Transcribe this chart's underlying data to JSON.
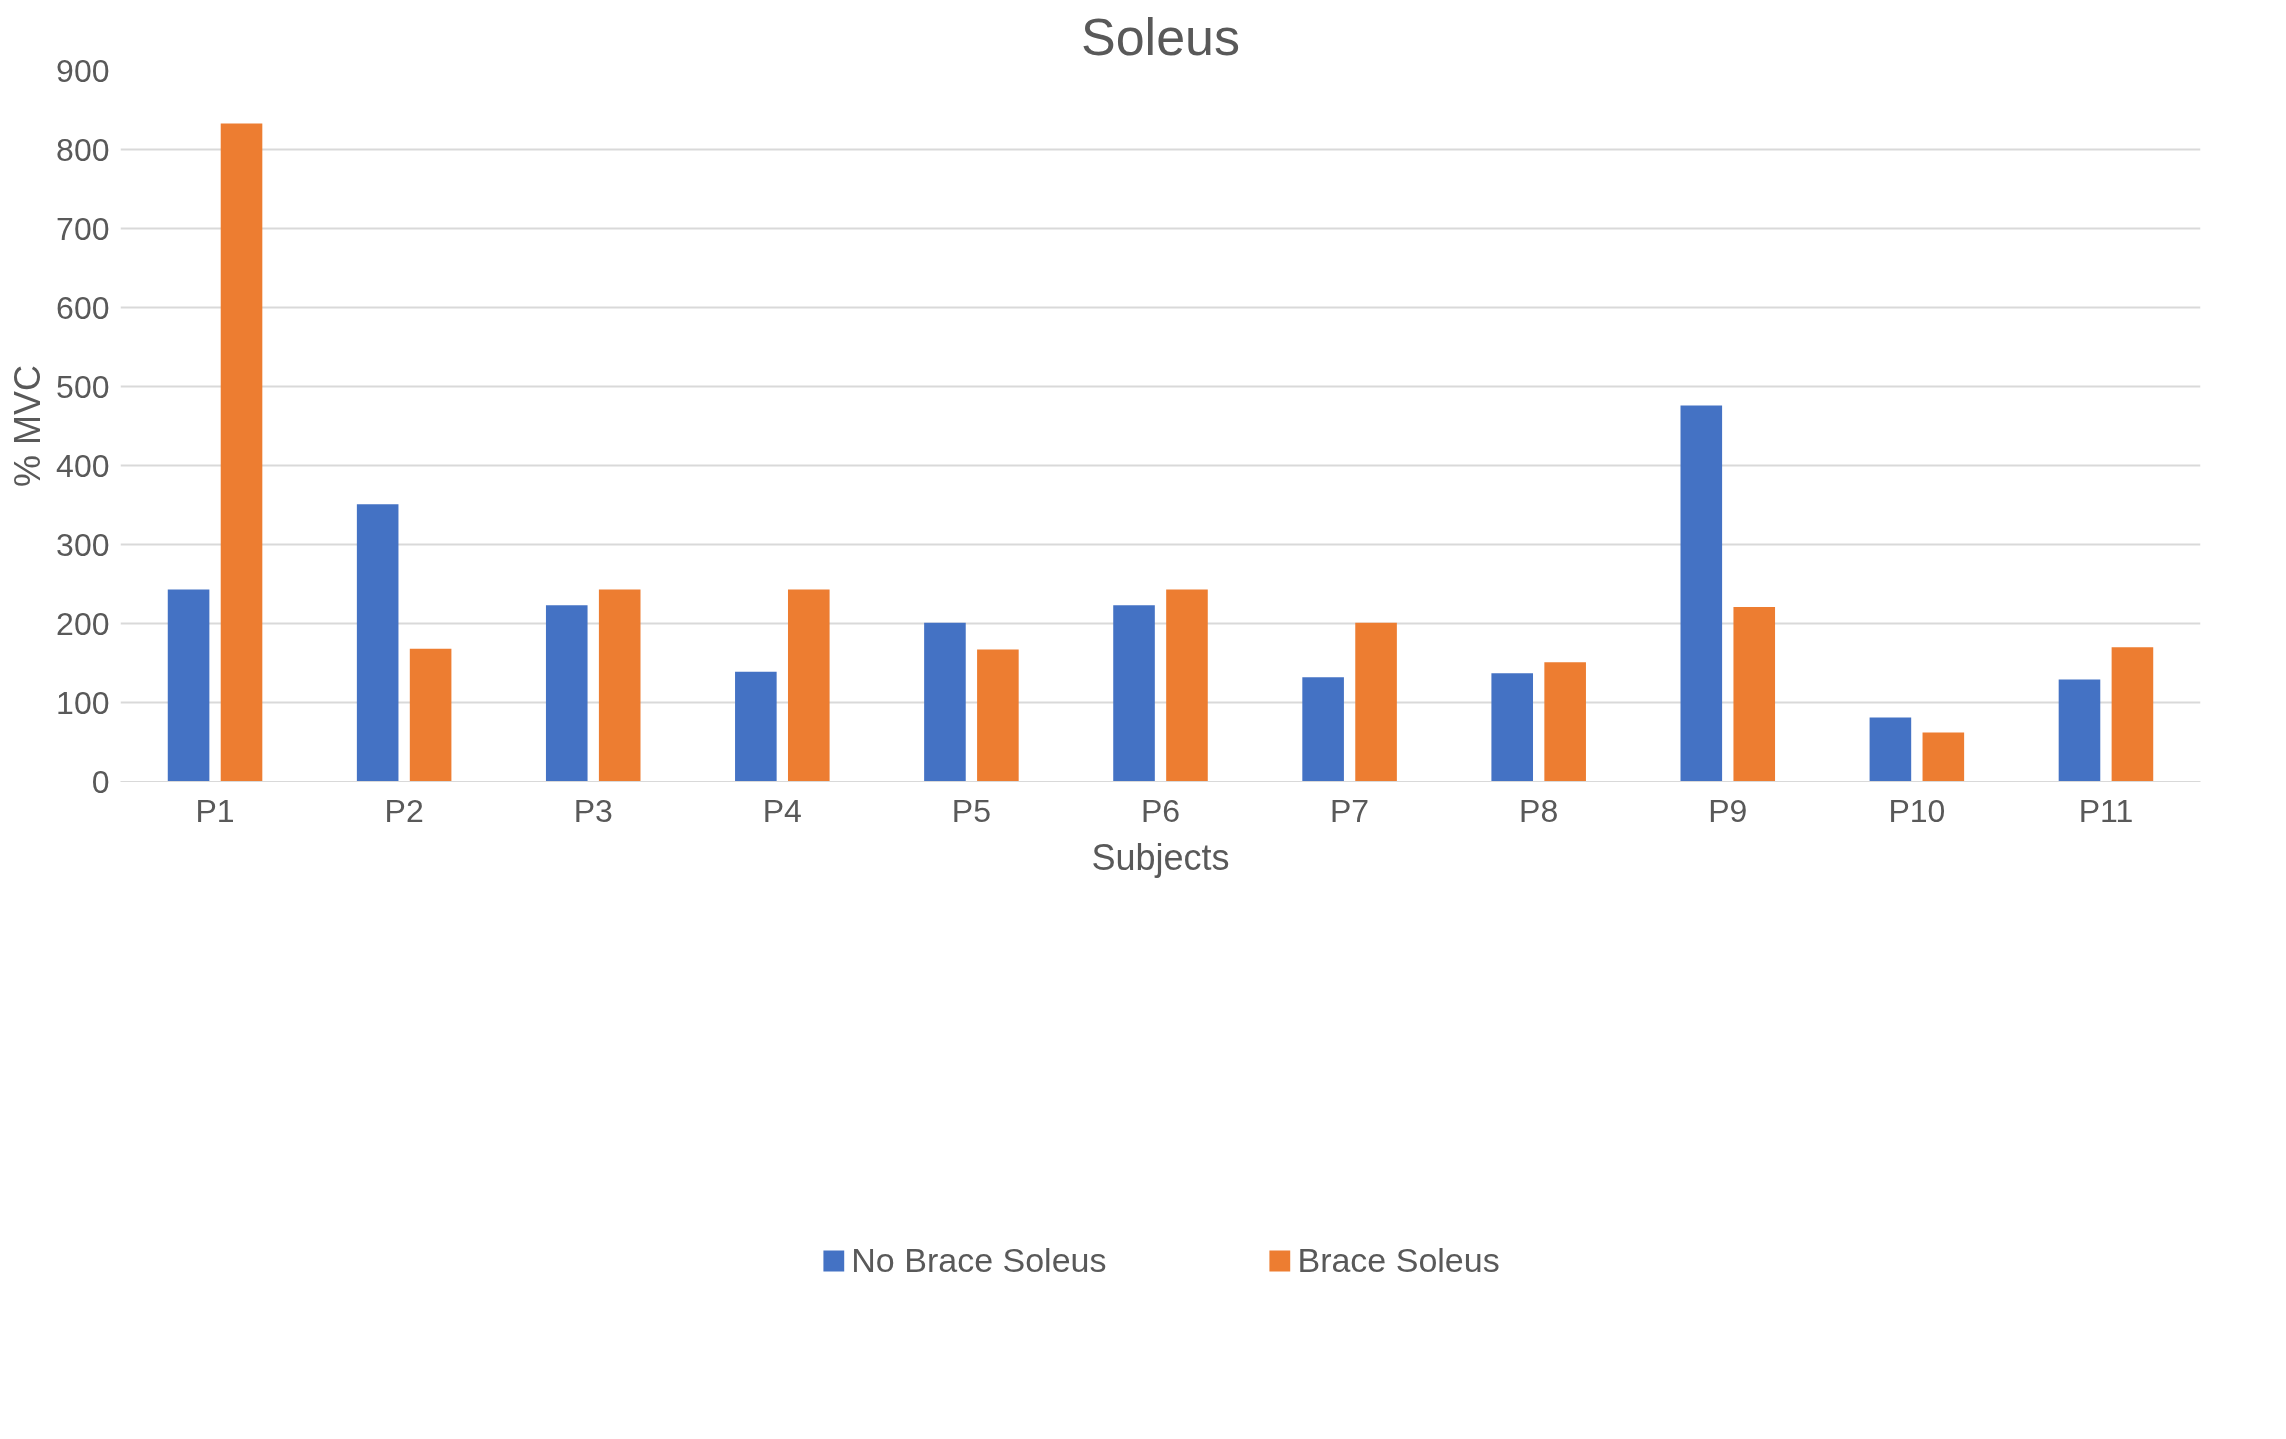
{
  "chart_data": {
    "type": "bar",
    "title": "Soleus",
    "xlabel": "Subjects",
    "ylabel": "% MVC",
    "categories": [
      "P1",
      "P2",
      "P3",
      "P4",
      "P5",
      "P6",
      "P7",
      "P8",
      "P9",
      "P10",
      "P11"
    ],
    "series": [
      {
        "name": "No Brace Soleus",
        "color": "#4472c4",
        "values": [
          243,
          351,
          223,
          139,
          201,
          223,
          132,
          137,
          476,
          81,
          129
        ]
      },
      {
        "name": "Brace Soleus",
        "color": "#ed7d31",
        "values": [
          833,
          168,
          243,
          243,
          167,
          243,
          201,
          151,
          221,
          62,
          170
        ]
      }
    ],
    "ylim": [
      0,
      900
    ],
    "yticks": [
      0,
      100,
      200,
      300,
      400,
      500,
      600,
      700,
      800,
      900
    ],
    "grid": "y",
    "legend": "bottom"
  }
}
